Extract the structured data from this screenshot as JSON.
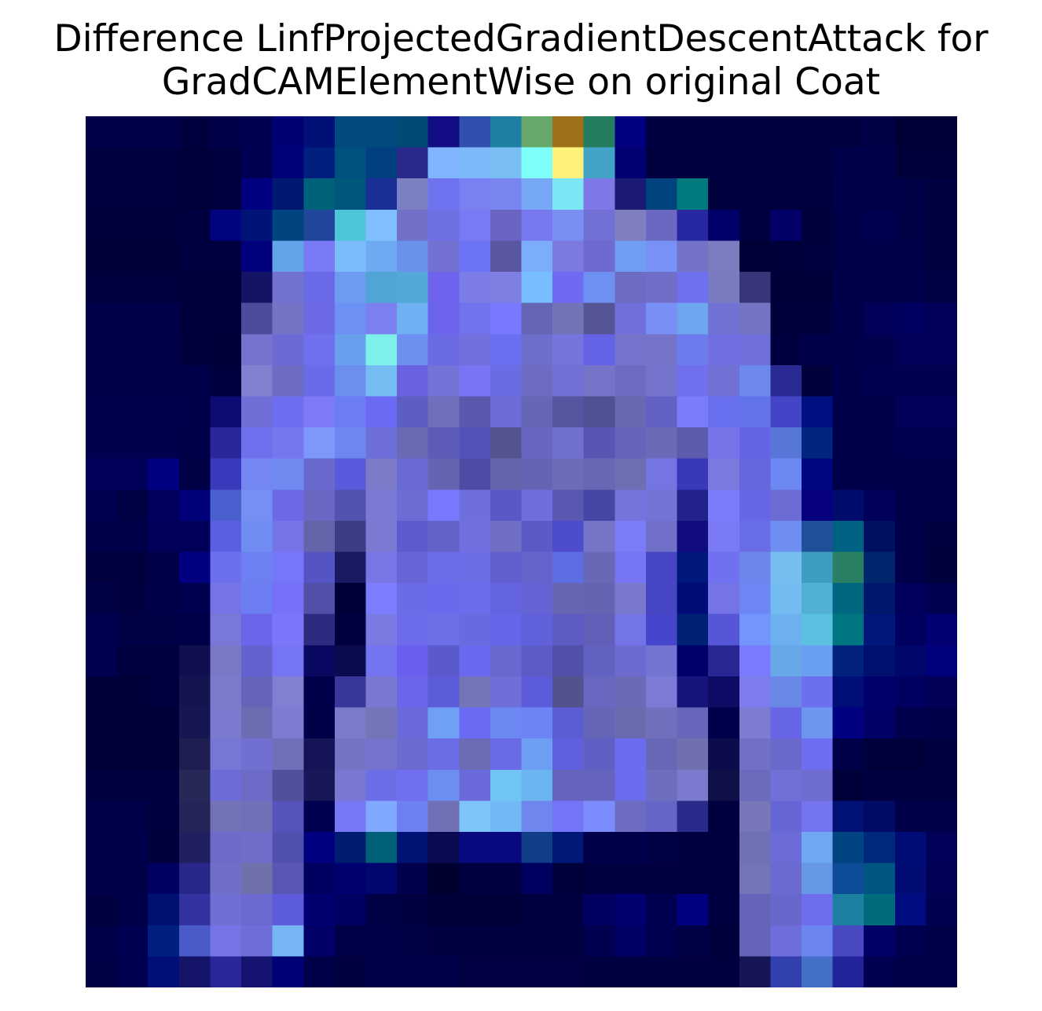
{
  "chart_data": {
    "type": "heatmap",
    "title_lines": [
      "Difference LinfProjectedGradientDescentAttack for",
      "GradCAMElementWise on original Coat"
    ],
    "xlabel": "",
    "ylabel": "",
    "axes_visible": false,
    "grid": false,
    "legend": "none",
    "rows": 28,
    "cols": 28,
    "pixels": [
      [
        "#00004a",
        "#00004a",
        "#00004a",
        "#00003f",
        "#00004a",
        "#000052",
        "#000075",
        "#001076",
        "#004a80",
        "#004a80",
        "#004a75",
        "#120d85",
        "#3050b0",
        "#1d7fa2",
        "#66a86a",
        "#9c7119",
        "#237d5e",
        "#000080",
        "#000041",
        "#000041",
        "#000041",
        "#000041",
        "#00003f",
        "#00003f",
        "#000041",
        "#000046",
        "#000036",
        "#000036"
      ],
      [
        "#000040",
        "#000040",
        "#000040",
        "#00003a",
        "#000040",
        "#000052",
        "#000078",
        "#002080",
        "#005080",
        "#004080",
        "#2a2a8a",
        "#80b4ff",
        "#7bb9fa",
        "#78bef2",
        "#7efff9",
        "#fff27a",
        "#42a3c7",
        "#000073",
        "#000040",
        "#000040",
        "#000040",
        "#000040",
        "#000040",
        "#000040",
        "#00004a",
        "#00004a",
        "#00003a",
        "#00003a"
      ],
      [
        "#00003e",
        "#00003e",
        "#00003e",
        "#00003a",
        "#000040",
        "#000080",
        "#001970",
        "#006279",
        "#00577c",
        "#1a2f96",
        "#7b80c2",
        "#7073ef",
        "#7a80f1",
        "#7a84f0",
        "#76a8f6",
        "#7be7f6",
        "#7e77e7",
        "#1a1a72",
        "#00447f",
        "#00797f",
        "#00003e",
        "#00003e",
        "#00003e",
        "#00003e",
        "#00004b",
        "#00004b",
        "#000046",
        "#000040"
      ],
      [
        "#00003c",
        "#00003c",
        "#00003c",
        "#000040",
        "#00047e",
        "#001478",
        "#004480",
        "#20469c",
        "#4fc5da",
        "#7fbeff",
        "#7170c7",
        "#7070e5",
        "#7879f4",
        "#6a64c2",
        "#7979ef",
        "#7a8ff3",
        "#7070d5",
        "#7f7fbf",
        "#6a68c0",
        "#2727a3",
        "#00006a",
        "#000040",
        "#000068",
        "#00003d",
        "#000048",
        "#000050",
        "#000046",
        "#00003e"
      ],
      [
        "#000038",
        "#000038",
        "#000038",
        "#000040",
        "#000040",
        "#00007c",
        "#63a3e8",
        "#7a7af5",
        "#7abdfa",
        "#6eaaf2",
        "#6a92eb",
        "#7372d3",
        "#6d73f5",
        "#5b56a2",
        "#7cadfa",
        "#7a7ae1",
        "#6e6ad0",
        "#6f9df4",
        "#7891f6",
        "#7272c8",
        "#7c7cc0",
        "#000036",
        "#00003a",
        "#00003e",
        "#000048",
        "#00004a",
        "#00004a",
        "#00003e"
      ],
      [
        "#00003e",
        "#00003e",
        "#00003e",
        "#00003a",
        "#00003c",
        "#141467",
        "#7272d0",
        "#6a6ae8",
        "#6e9af0",
        "#50a4d6",
        "#54a8d9",
        "#6e64ee",
        "#7c7ce8",
        "#7f7fe1",
        "#77bdff",
        "#6e6af1",
        "#6e90f3",
        "#6e6cc2",
        "#706ec9",
        "#6f70ee",
        "#7a7ac0",
        "#363678",
        "#000039",
        "#000039",
        "#000048",
        "#00004a",
        "#00004a",
        "#000044"
      ],
      [
        "#00004a",
        "#00004a",
        "#00004a",
        "#00003c",
        "#00003c",
        "#4c4c9c",
        "#7474c6",
        "#6c6ae5",
        "#6c90f3",
        "#7d80f0",
        "#6fb0f2",
        "#6d64ee",
        "#7272ee",
        "#7979ff",
        "#6565b5",
        "#7373b8",
        "#565696",
        "#7070da",
        "#7890f5",
        "#6ea5ef",
        "#7272d5",
        "#7474c5",
        "#00003c",
        "#00003c",
        "#00004a",
        "#000058",
        "#000060",
        "#000058"
      ],
      [
        "#000048",
        "#000048",
        "#000048",
        "#00003d",
        "#000036",
        "#7474cf",
        "#6c6ad4",
        "#7070ef",
        "#68a0ee",
        "#7ef0ea",
        "#6c8ff0",
        "#6a6ae2",
        "#7070de",
        "#6a70ef",
        "#6e6ecc",
        "#7474dd",
        "#6462e5",
        "#7474cc",
        "#7474cb",
        "#6c7cef",
        "#7070e2",
        "#7070dc",
        "#000040",
        "#00004a",
        "#00004a",
        "#00004f",
        "#000058",
        "#000058"
      ],
      [
        "#000048",
        "#000048",
        "#000048",
        "#00004a",
        "#00003f",
        "#8080d0",
        "#6d6dc4",
        "#6a6be9",
        "#6c8eef",
        "#74bcf1",
        "#6a62e1",
        "#7474d8",
        "#7874f4",
        "#6b6be4",
        "#6c6cc2",
        "#7070d5",
        "#7474c9",
        "#6c6cc1",
        "#7474cd",
        "#7070ef",
        "#7070d5",
        "#6c88ef",
        "#2a2a94",
        "#00003a",
        "#00004a",
        "#000050",
        "#000050",
        "#000050"
      ],
      [
        "#00004f",
        "#00004f",
        "#00004f",
        "#00004a",
        "#0c0c74",
        "#6f6fd7",
        "#6e6ef0",
        "#7d7af6",
        "#6c7cf2",
        "#6c6af4",
        "#5c5ec1",
        "#6f6fbd",
        "#5858ad",
        "#6c6cd7",
        "#6666b7",
        "#5656a0",
        "#505094",
        "#6868b0",
        "#6262c4",
        "#7a7cfb",
        "#6870f0",
        "#6274e8",
        "#4444c6",
        "#001080",
        "#00004a",
        "#00004a",
        "#000058",
        "#000058"
      ],
      [
        "#00004f",
        "#00004f",
        "#00004f",
        "#000049",
        "#28289c",
        "#7070ee",
        "#7676ee",
        "#7d98fa",
        "#6e86f0",
        "#6e6ed8",
        "#6a6ab4",
        "#5c5cb8",
        "#5252b8",
        "#53538e",
        "#6767c1",
        "#7070cf",
        "#5757b3",
        "#6464bb",
        "#6a6ab9",
        "#5c5cad",
        "#7474e8",
        "#6464e4",
        "#5676d8",
        "#002680",
        "#00004a",
        "#00004a",
        "#000050",
        "#000050"
      ],
      [
        "#00005a",
        "#00005a",
        "#000080",
        "#000044",
        "#3a3abc",
        "#7486f2",
        "#708af2",
        "#6868cf",
        "#5a5add",
        "#7a7ac8",
        "#6a6ad6",
        "#6464b3",
        "#4c4ca4",
        "#6464ad",
        "#6464b5",
        "#6c6cb9",
        "#6868b6",
        "#6e6eb2",
        "#7474e2",
        "#3838b8",
        "#7a7ade",
        "#6666df",
        "#6c88f2",
        "#000680",
        "#00004a",
        "#00004a",
        "#00004a",
        "#000048"
      ],
      [
        "#000052",
        "#000044",
        "#00005c",
        "#000078",
        "#4a60cf",
        "#7590f5",
        "#6d68e5",
        "#6868c3",
        "#5252b0",
        "#7a7ad4",
        "#6d6dd6",
        "#7878ff",
        "#6e6edd",
        "#5858c6",
        "#6e6edd",
        "#5858b0",
        "#4646a4",
        "#7474dd",
        "#7474d6",
        "#22228c",
        "#7c7cfa",
        "#6666e6",
        "#6c6cd4",
        "#06007e",
        "#000c6c",
        "#00005a",
        "#00004a",
        "#000048"
      ],
      [
        "#00004a",
        "#00004a",
        "#000058",
        "#000058",
        "#5a5ee0",
        "#6e8cf2",
        "#7474e8",
        "#6464ab",
        "#3c3c84",
        "#7a7ad2",
        "#5c5cd0",
        "#6262c8",
        "#7070e0",
        "#6f6fc5",
        "#5b5bc8",
        "#4c4ccc",
        "#7575c8",
        "#7b7bf6",
        "#7070c8",
        "#100c80",
        "#7a7af6",
        "#6a6ee6",
        "#6e8ef2",
        "#20509a",
        "#006282",
        "#00105f",
        "#00004a",
        "#00003e"
      ],
      [
        "#00003e",
        "#00003e",
        "#00004a",
        "#000080",
        "#6d70ec",
        "#6c80f2",
        "#7676f8",
        "#5454c4",
        "#1a1a64",
        "#7676e6",
        "#6666d8",
        "#6c6ce8",
        "#6d6de6",
        "#5f5fcf",
        "#6464cc",
        "#5d6ee2",
        "#6868b6",
        "#7676f4",
        "#4646c4",
        "#00187c",
        "#7070f0",
        "#6c86ee",
        "#76bef0",
        "#3e9cc0",
        "#2a8062",
        "#00266e",
        "#00004a",
        "#00003c"
      ],
      [
        "#000046",
        "#000040",
        "#000048",
        "#000050",
        "#7474e6",
        "#6c7cf1",
        "#7770f8",
        "#5050a8",
        "#000038",
        "#7c7cff",
        "#6b6be8",
        "#6a6aec",
        "#6c6cec",
        "#6464e0",
        "#6464d7",
        "#6666b4",
        "#6464b3",
        "#7878cf",
        "#4646c4",
        "#000d77",
        "#7474e6",
        "#6e86f4",
        "#72bcf2",
        "#52b0d6",
        "#006680",
        "#00186c",
        "#00005c",
        "#000050"
      ],
      [
        "#000050",
        "#000046",
        "#000046",
        "#000048",
        "#7878d8",
        "#6b66e9",
        "#7a76f9",
        "#2b2b80",
        "#000040",
        "#7a7ae2",
        "#6b6bec",
        "#6e6ee6",
        "#6969e0",
        "#6666e8",
        "#6060da",
        "#5c5cc4",
        "#6060b8",
        "#7474e9",
        "#4646cc",
        "#002274",
        "#5656d6",
        "#7296fd",
        "#6cb0ef",
        "#5ac2e0",
        "#007682",
        "#00187c",
        "#000060",
        "#000073"
      ],
      [
        "#000050",
        "#000040",
        "#000040",
        "#101050",
        "#7878c7",
        "#6262d0",
        "#7474f4",
        "#080860",
        "#0b0b52",
        "#7474f0",
        "#6a60f0",
        "#5a5acc",
        "#6a6af0",
        "#6868cf",
        "#5c5cc6",
        "#5050a8",
        "#6262c0",
        "#6c6cd0",
        "#7474d2",
        "#00006a",
        "#282894",
        "#7a7aff",
        "#66a8e8",
        "#6a9ef0",
        "#00227c",
        "#00106e",
        "#00066c",
        "#00007a"
      ],
      [
        "#000038",
        "#000038",
        "#00003e",
        "#141450",
        "#7a7aca",
        "#6464b8",
        "#8080d2",
        "#00004a",
        "#38389a",
        "#7878d0",
        "#6b66e9",
        "#5c5cd8",
        "#7474b8",
        "#6f6fd9",
        "#5c5cda",
        "#52528e",
        "#6868c0",
        "#6a6ab6",
        "#7b7bd6",
        "#14147c",
        "#0c0c64",
        "#7c7cee",
        "#6a88e8",
        "#6c70ef",
        "#000f77",
        "#00006a",
        "#000060",
        "#000056"
      ],
      [
        "#000038",
        "#000038",
        "#000038",
        "#161652",
        "#7a7ace",
        "#6c6cb2",
        "#7b7bd2",
        "#000048",
        "#7a7acb",
        "#7474b8",
        "#6a6adc",
        "#70a0f6",
        "#6a6af4",
        "#6c88f2",
        "#6c84f4",
        "#5c5cd3",
        "#6666b9",
        "#6a6aae",
        "#7070be",
        "#6666bb",
        "#00004c",
        "#7c7cd0",
        "#6666e7",
        "#6c96f0",
        "#000080",
        "#000066",
        "#00004c",
        "#000048"
      ],
      [
        "#000038",
        "#000038",
        "#000038",
        "#1e1e52",
        "#7676d4",
        "#7070d0",
        "#7070ba",
        "#141456",
        "#7474c6",
        "#7474cc",
        "#6c6cd0",
        "#6c6ce4",
        "#6c6cb6",
        "#6a6ae6",
        "#6c9ef2",
        "#6060de",
        "#6060c4",
        "#6c6cf0",
        "#6868b8",
        "#7070b0",
        "#0c0c4c",
        "#7070c4",
        "#6a6acc",
        "#6e6ef0",
        "#000048",
        "#00003a",
        "#00003a",
        "#000040"
      ],
      [
        "#000040",
        "#000040",
        "#00003f",
        "#282858",
        "#6c6cd8",
        "#6c6cc8",
        "#50509c",
        "#181858",
        "#7878d2",
        "#6d6de8",
        "#6f6ff0",
        "#6c8ef0",
        "#6a6adc",
        "#70c4f6",
        "#6ab4f0",
        "#6464bc",
        "#6464bc",
        "#6c6cee",
        "#6e6ec0",
        "#7a7ace",
        "#101048",
        "#6b6bbe",
        "#7070d6",
        "#6e6ed0",
        "#00003a",
        "#000040",
        "#000040",
        "#000040"
      ],
      [
        "#000048",
        "#000048",
        "#000040",
        "#242458",
        "#7272b8",
        "#7070b8",
        "#5454ba",
        "#000050",
        "#7878f6",
        "#80a8ff",
        "#6c80f2",
        "#7070b6",
        "#7cc4fa",
        "#72b8f4",
        "#6e86ee",
        "#7474f8",
        "#7c8cfd",
        "#6c6cc0",
        "#6565c8",
        "#2a2a8a",
        "#000040",
        "#7676b8",
        "#6666d6",
        "#7474ee",
        "#001276",
        "#000c66",
        "#000048",
        "#000048"
      ],
      [
        "#00004a",
        "#00004a",
        "#00003c",
        "#202060",
        "#6c6cc8",
        "#6e6ec8",
        "#5050ae",
        "#000080",
        "#001c70",
        "#006077",
        "#001274",
        "#0a0a52",
        "#0a0a80",
        "#0a0a80",
        "#103c88",
        "#001878",
        "#00004a",
        "#00004a",
        "#000044",
        "#000040",
        "#000040",
        "#7070b6",
        "#6c6cd8",
        "#70a8f4",
        "#004482",
        "#00287c",
        "#000c76",
        "#000058"
      ],
      [
        "#000048",
        "#000048",
        "#000060",
        "#28288a",
        "#6f6fc8",
        "#7070aa",
        "#5858b4",
        "#000060",
        "#000070",
        "#00066e",
        "#00004e",
        "#000030",
        "#000040",
        "#000040",
        "#000060",
        "#00003a",
        "#000040",
        "#000040",
        "#000040",
        "#000040",
        "#00003e",
        "#7474b8",
        "#6a6ad0",
        "#6698e4",
        "#0c4c98",
        "#005582",
        "#000c73",
        "#000054"
      ],
      [
        "#000040",
        "#000048",
        "#001070",
        "#3232a0",
        "#7070d4",
        "#6a6ad0",
        "#5c5cdc",
        "#000070",
        "#000060",
        "#000044",
        "#000040",
        "#000038",
        "#000038",
        "#000038",
        "#000040",
        "#000040",
        "#000060",
        "#000070",
        "#000050",
        "#000080",
        "#000040",
        "#6464b8",
        "#6868cc",
        "#6e6eec",
        "#1c80a0",
        "#006b7a",
        "#000c80",
        "#000050"
      ],
      [
        "#000048",
        "#000052",
        "#002080",
        "#4a5ac8",
        "#7474e6",
        "#6e6ed8",
        "#76b4f4",
        "#000068",
        "#000048",
        "#000048",
        "#000044",
        "#000040",
        "#000040",
        "#000040",
        "#000040",
        "#000040",
        "#000050",
        "#000064",
        "#000050",
        "#000044",
        "#00003c",
        "#6464b8",
        "#6d6ddc",
        "#6c86f0",
        "#4848c0",
        "#000066",
        "#000050",
        "#000048"
      ],
      [
        "#000046",
        "#000050",
        "#000f7a",
        "#141468",
        "#28289c",
        "#141470",
        "#000076",
        "#000048",
        "#000040",
        "#00004a",
        "#00004a",
        "#000048",
        "#000042",
        "#000042",
        "#000042",
        "#000042",
        "#000040",
        "#000040",
        "#000040",
        "#000040",
        "#00003e",
        "#161654",
        "#3240b0",
        "#4470c8",
        "#22229a",
        "#000050",
        "#000048",
        "#000048"
      ]
    ]
  }
}
